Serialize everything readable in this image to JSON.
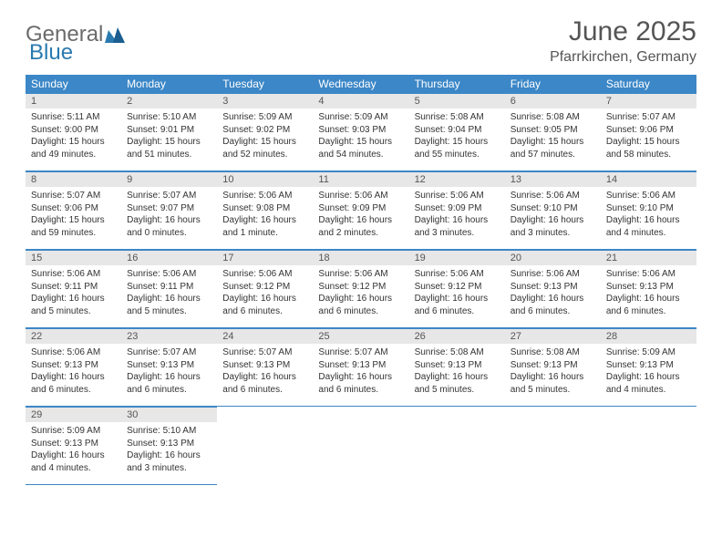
{
  "colors": {
    "header_bg": "#3c87c7",
    "header_text": "#ffffff",
    "daynum_bg": "#e7e7e7",
    "border": "#3c87c7",
    "logo_gray": "#6b6b6b",
    "logo_blue": "#2a7ab0",
    "title_color": "#555555",
    "body_text": "#333333",
    "page_bg": "#ffffff"
  },
  "typography": {
    "month_title_fontsize": 30,
    "location_fontsize": 16,
    "dayheader_fontsize": 12,
    "daynum_fontsize": 11,
    "body_fontsize": 10,
    "font_family": "Arial"
  },
  "logo": {
    "part1": "General",
    "part2": "Blue"
  },
  "title": "June 2025",
  "location": "Pfarrkirchen, Germany",
  "day_headers": [
    "Sunday",
    "Monday",
    "Tuesday",
    "Wednesday",
    "Thursday",
    "Friday",
    "Saturday"
  ],
  "weeks": [
    [
      {
        "n": "1",
        "sr": "5:11 AM",
        "ss": "9:00 PM",
        "dl": "15 hours and 49 minutes."
      },
      {
        "n": "2",
        "sr": "5:10 AM",
        "ss": "9:01 PM",
        "dl": "15 hours and 51 minutes."
      },
      {
        "n": "3",
        "sr": "5:09 AM",
        "ss": "9:02 PM",
        "dl": "15 hours and 52 minutes."
      },
      {
        "n": "4",
        "sr": "5:09 AM",
        "ss": "9:03 PM",
        "dl": "15 hours and 54 minutes."
      },
      {
        "n": "5",
        "sr": "5:08 AM",
        "ss": "9:04 PM",
        "dl": "15 hours and 55 minutes."
      },
      {
        "n": "6",
        "sr": "5:08 AM",
        "ss": "9:05 PM",
        "dl": "15 hours and 57 minutes."
      },
      {
        "n": "7",
        "sr": "5:07 AM",
        "ss": "9:06 PM",
        "dl": "15 hours and 58 minutes."
      }
    ],
    [
      {
        "n": "8",
        "sr": "5:07 AM",
        "ss": "9:06 PM",
        "dl": "15 hours and 59 minutes."
      },
      {
        "n": "9",
        "sr": "5:07 AM",
        "ss": "9:07 PM",
        "dl": "16 hours and 0 minutes."
      },
      {
        "n": "10",
        "sr": "5:06 AM",
        "ss": "9:08 PM",
        "dl": "16 hours and 1 minute."
      },
      {
        "n": "11",
        "sr": "5:06 AM",
        "ss": "9:09 PM",
        "dl": "16 hours and 2 minutes."
      },
      {
        "n": "12",
        "sr": "5:06 AM",
        "ss": "9:09 PM",
        "dl": "16 hours and 3 minutes."
      },
      {
        "n": "13",
        "sr": "5:06 AM",
        "ss": "9:10 PM",
        "dl": "16 hours and 3 minutes."
      },
      {
        "n": "14",
        "sr": "5:06 AM",
        "ss": "9:10 PM",
        "dl": "16 hours and 4 minutes."
      }
    ],
    [
      {
        "n": "15",
        "sr": "5:06 AM",
        "ss": "9:11 PM",
        "dl": "16 hours and 5 minutes."
      },
      {
        "n": "16",
        "sr": "5:06 AM",
        "ss": "9:11 PM",
        "dl": "16 hours and 5 minutes."
      },
      {
        "n": "17",
        "sr": "5:06 AM",
        "ss": "9:12 PM",
        "dl": "16 hours and 6 minutes."
      },
      {
        "n": "18",
        "sr": "5:06 AM",
        "ss": "9:12 PM",
        "dl": "16 hours and 6 minutes."
      },
      {
        "n": "19",
        "sr": "5:06 AM",
        "ss": "9:12 PM",
        "dl": "16 hours and 6 minutes."
      },
      {
        "n": "20",
        "sr": "5:06 AM",
        "ss": "9:13 PM",
        "dl": "16 hours and 6 minutes."
      },
      {
        "n": "21",
        "sr": "5:06 AM",
        "ss": "9:13 PM",
        "dl": "16 hours and 6 minutes."
      }
    ],
    [
      {
        "n": "22",
        "sr": "5:06 AM",
        "ss": "9:13 PM",
        "dl": "16 hours and 6 minutes."
      },
      {
        "n": "23",
        "sr": "5:07 AM",
        "ss": "9:13 PM",
        "dl": "16 hours and 6 minutes."
      },
      {
        "n": "24",
        "sr": "5:07 AM",
        "ss": "9:13 PM",
        "dl": "16 hours and 6 minutes."
      },
      {
        "n": "25",
        "sr": "5:07 AM",
        "ss": "9:13 PM",
        "dl": "16 hours and 6 minutes."
      },
      {
        "n": "26",
        "sr": "5:08 AM",
        "ss": "9:13 PM",
        "dl": "16 hours and 5 minutes."
      },
      {
        "n": "27",
        "sr": "5:08 AM",
        "ss": "9:13 PM",
        "dl": "16 hours and 5 minutes."
      },
      {
        "n": "28",
        "sr": "5:09 AM",
        "ss": "9:13 PM",
        "dl": "16 hours and 4 minutes."
      }
    ],
    [
      {
        "n": "29",
        "sr": "5:09 AM",
        "ss": "9:13 PM",
        "dl": "16 hours and 4 minutes."
      },
      {
        "n": "30",
        "sr": "5:10 AM",
        "ss": "9:13 PM",
        "dl": "16 hours and 3 minutes."
      },
      null,
      null,
      null,
      null,
      null
    ]
  ],
  "labels": {
    "sunrise": "Sunrise:",
    "sunset": "Sunset:",
    "daylight": "Daylight:"
  }
}
